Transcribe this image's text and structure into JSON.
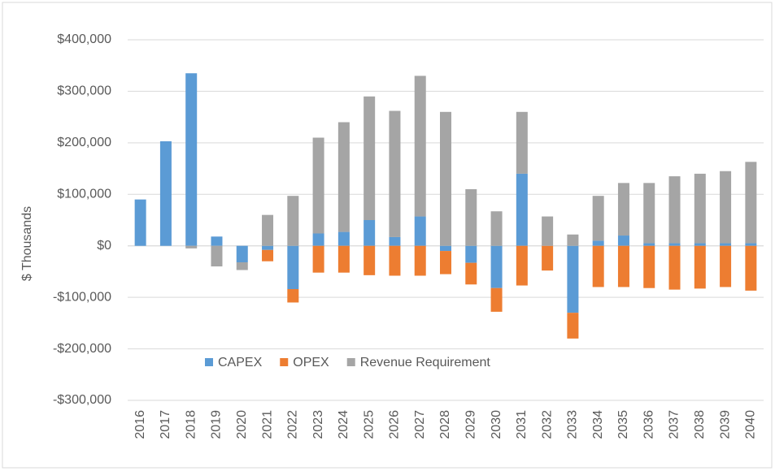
{
  "chart_data": {
    "type": "bar",
    "stacked": true,
    "y_label": "$ Thousands",
    "categories": [
      "2016",
      "2017",
      "2018",
      "2019",
      "2020",
      "2021",
      "2022",
      "2023",
      "2024",
      "2025",
      "2026",
      "2027",
      "2028",
      "2029",
      "2030",
      "2031",
      "2032",
      "2033",
      "2034",
      "2035",
      "2036",
      "2037",
      "2038",
      "2039",
      "2040"
    ],
    "series": [
      {
        "name": "CAPEX",
        "color": "#5b9bd5",
        "values": [
          90000,
          203000,
          335000,
          18000,
          -32000,
          -8000,
          -84000,
          24000,
          27000,
          50000,
          17000,
          57000,
          -10000,
          -33000,
          -82000,
          140000,
          0,
          -130000,
          10000,
          20000,
          5000,
          5000,
          5000,
          5000,
          5000
        ]
      },
      {
        "name": "OPEX",
        "color": "#ed7d31",
        "values": [
          0,
          0,
          0,
          0,
          0,
          -22000,
          -26000,
          -52000,
          -52000,
          -57000,
          -58000,
          -58000,
          -45000,
          -42000,
          -46000,
          -77000,
          -48000,
          -50000,
          -80000,
          -80000,
          -82000,
          -85000,
          -83000,
          -80000,
          -87000
        ]
      },
      {
        "name": "Revenue Requirement",
        "color": "#a5a5a5",
        "values": [
          0,
          0,
          -5000,
          -40000,
          -15000,
          60000,
          97000,
          186000,
          213000,
          240000,
          245000,
          273000,
          260000,
          110000,
          67000,
          120000,
          57000,
          22000,
          87000,
          102000,
          117000,
          130000,
          135000,
          140000,
          158000
        ]
      }
    ],
    "ylim": [
      -300000,
      400000
    ],
    "yticks": [
      {
        "value": -300000,
        "label": "-$300,000"
      },
      {
        "value": -200000,
        "label": "-$200,000"
      },
      {
        "value": -100000,
        "label": "-$100,000"
      },
      {
        "value": 0,
        "label": "$0"
      },
      {
        "value": 100000,
        "label": "$100,000"
      },
      {
        "value": 200000,
        "label": "$200,000"
      },
      {
        "value": 300000,
        "label": "$300,000"
      },
      {
        "value": 400000,
        "label": "$400,000"
      }
    ],
    "grid": true,
    "legend": "bottom"
  }
}
